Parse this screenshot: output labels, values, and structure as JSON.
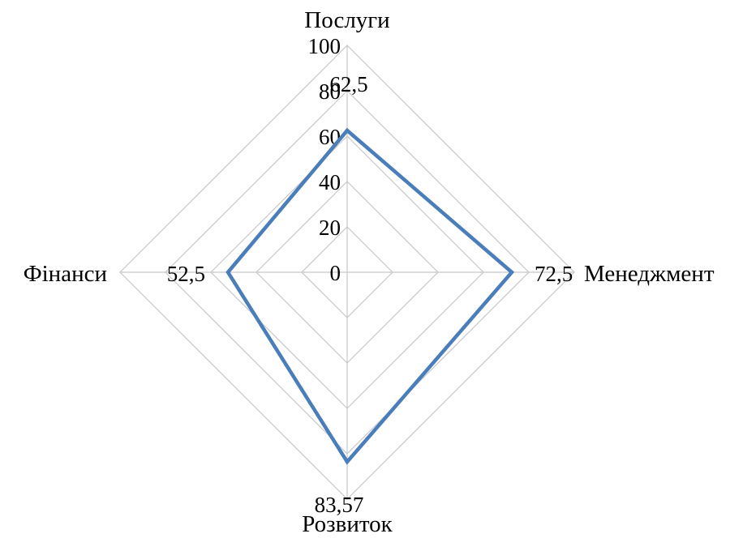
{
  "chart_data": {
    "type": "radar",
    "categories": [
      "Послуги",
      "Менеджмент",
      "Розвиток",
      "Фінанси"
    ],
    "series": [
      {
        "values": [
          62.5,
          72.5,
          83.57,
          52.5
        ],
        "data_labels": [
          "62,5",
          "72,5",
          "83,57",
          "52,5"
        ],
        "color": "#4a7ebb"
      }
    ],
    "r_range": [
      0,
      100
    ],
    "r_ticks": [
      "0",
      "20",
      "40",
      "60",
      "80",
      "100"
    ],
    "grid": true,
    "legend": false
  }
}
